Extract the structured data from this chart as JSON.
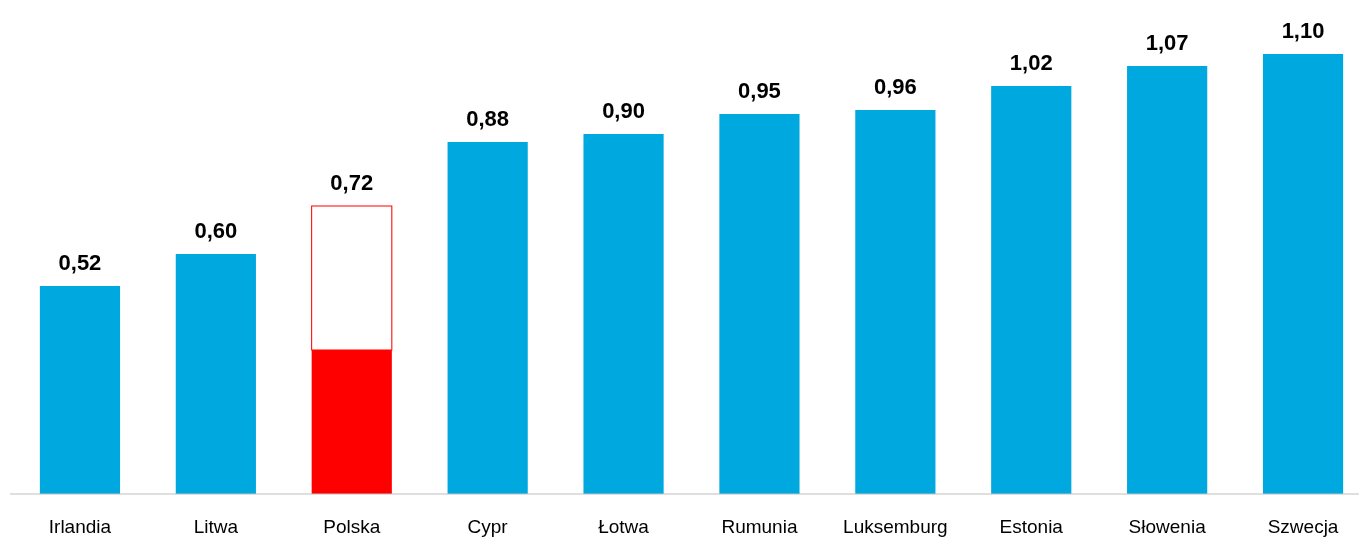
{
  "chart_data": {
    "type": "bar",
    "categories": [
      "Irlandia",
      "Litwa",
      "Polska",
      "Cypr",
      "Łotwa",
      "Rumunia",
      "Luksemburg",
      "Estonia",
      "Słowenia",
      "Szwecja"
    ],
    "values": [
      0.52,
      0.6,
      0.72,
      0.88,
      0.9,
      0.95,
      0.96,
      1.02,
      1.07,
      1.1
    ],
    "colors": [
      "#00a8e0",
      "#00a8e0",
      "#ff0000",
      "#00a8e0",
      "#00a8e0",
      "#00a8e0",
      "#00a8e0",
      "#00a8e0",
      "#00a8e0",
      "#00a8e0"
    ],
    "value_labels": [
      "0,52",
      "0,60",
      "0,72",
      "0,88",
      "0,90",
      "0,95",
      "0,96",
      "1,02",
      "1,07",
      "1,10"
    ]
  }
}
